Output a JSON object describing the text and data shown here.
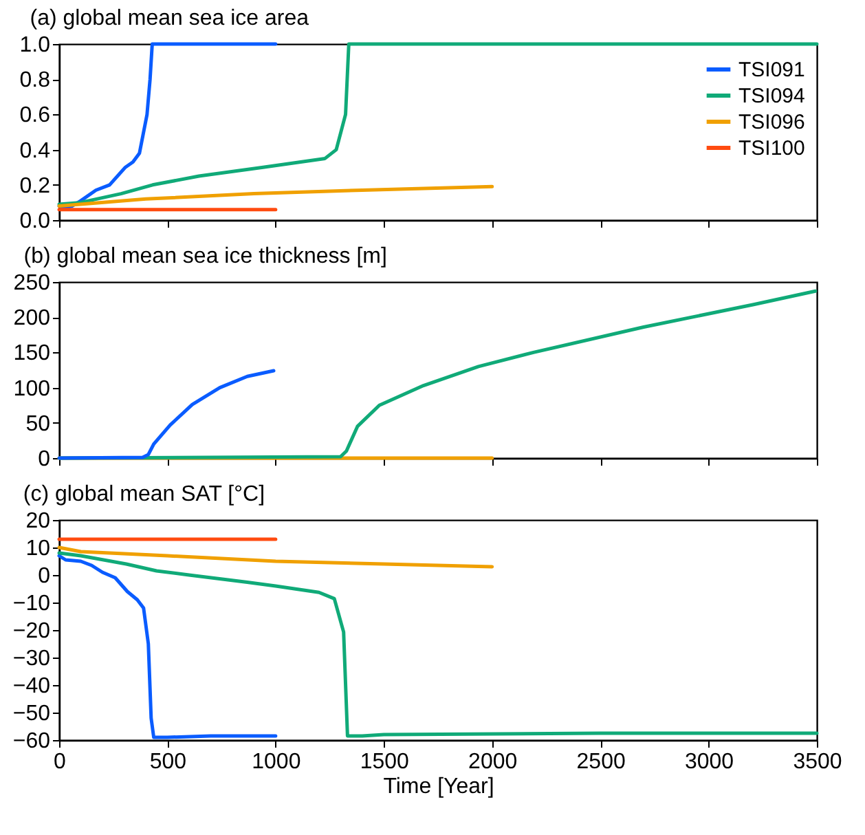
{
  "chart_data": [
    {
      "type": "line",
      "title": "(a) global mean sea ice area",
      "xlim": [
        0,
        3500
      ],
      "xticks": [
        0,
        500,
        1000,
        1500,
        2000,
        2500,
        3000,
        3500
      ],
      "ylim": [
        0,
        1
      ],
      "yticks": [
        {
          "value": 0,
          "label": "0.0"
        },
        {
          "value": 0.2,
          "label": "0.2"
        },
        {
          "value": 0.4,
          "label": "0.4"
        },
        {
          "value": 0.6,
          "label": "0.6"
        },
        {
          "value": 0.8,
          "label": "0.8"
        },
        {
          "value": 1,
          "label": "1.0"
        }
      ],
      "tick_labels": "y",
      "grid": false,
      "legend": "top right",
      "line_style": "solid",
      "marker": "none",
      "series": [
        {
          "name": "TSI091",
          "color": "#0a5cff",
          "x": [
            0,
            30,
            60,
            100,
            170,
            233,
            306,
            341,
            371,
            406,
            420,
            430,
            500,
            1000
          ],
          "values": [
            0.08,
            0.07,
            0.08,
            0.11,
            0.17,
            0.2,
            0.3,
            0.33,
            0.38,
            0.6,
            0.8,
            1.0,
            1.0,
            1.0
          ]
        },
        {
          "name": "TSI094",
          "color": "#10aa78",
          "x": [
            0,
            100,
            286,
            432,
            646,
            942,
            1228,
            1280,
            1323,
            1338,
            2000,
            3500
          ],
          "values": [
            0.09,
            0.1,
            0.15,
            0.2,
            0.25,
            0.3,
            0.35,
            0.4,
            0.6,
            1.0,
            1.0,
            1.0
          ]
        },
        {
          "name": "TSI096",
          "color": "#f0a000",
          "x": [
            0,
            400,
            900,
            1400,
            2000
          ],
          "values": [
            0.08,
            0.12,
            0.15,
            0.17,
            0.19
          ]
        },
        {
          "name": "TSI100",
          "color": "#ff4b10",
          "x": [
            0,
            1000
          ],
          "values": [
            0.06,
            0.06
          ]
        }
      ]
    },
    {
      "type": "line",
      "title": "(b) global mean sea ice thickness [m]",
      "xlim": [
        0,
        3500
      ],
      "xticks": [
        0,
        500,
        1000,
        1500,
        2000,
        2500,
        3000,
        3500
      ],
      "ylim": [
        0,
        250
      ],
      "yticks": [
        0,
        50,
        100,
        150,
        200,
        250
      ],
      "tick_labels": "y",
      "grid": false,
      "line_style": "solid",
      "marker": "none",
      "series": [
        {
          "color": "#f0a000",
          "x": [
            0,
            2000
          ],
          "values": [
            0,
            0
          ]
        },
        {
          "color": "#10aa78",
          "x": [
            0,
            1300,
            1327,
            1378,
            1479,
            1683,
            1937,
            2191,
            2700,
            3208,
            3493
          ],
          "values": [
            0,
            2,
            10,
            45,
            75,
            103,
            130,
            150,
            186,
            218,
            237
          ]
        },
        {
          "color": "#0a5cff",
          "x": [
            0,
            386,
            412,
            437,
            513,
            615,
            742,
            869,
            991
          ],
          "values": [
            0,
            1,
            5,
            20,
            47,
            76,
            100,
            116,
            124
          ]
        }
      ]
    },
    {
      "type": "line",
      "title": "(c) global mean SAT [°C]",
      "xlabel": "Time [Year]",
      "xlim": [
        0,
        3500
      ],
      "xticks": [
        0,
        500,
        1000,
        1500,
        2000,
        2500,
        3000,
        3500
      ],
      "ylim": [
        -60,
        20
      ],
      "yticks": [
        -60,
        -50,
        -40,
        -30,
        -20,
        -10,
        0,
        10,
        20
      ],
      "grid": false,
      "line_style": "solid",
      "marker": "none",
      "series": [
        {
          "color": "#0a5cff",
          "x": [
            0,
            30,
            100,
            150,
            200,
            259,
            315,
            361,
            390,
            412,
            425,
            437,
            500,
            700,
            1000
          ],
          "values": [
            7,
            5.5,
            5,
            3.5,
            1,
            -1,
            -6,
            -9,
            -12,
            -25,
            -52,
            -59,
            -59,
            -58.5,
            -58.5
          ]
        },
        {
          "color": "#10aa78",
          "x": [
            0,
            100,
            310,
            450,
            600,
            869,
            1000,
            1200,
            1271,
            1314,
            1332,
            1400,
            1500,
            2500,
            3500
          ],
          "values": [
            8,
            7,
            4,
            1.5,
            0,
            -2.6,
            -4,
            -6.3,
            -8.6,
            -20.7,
            -58.5,
            -58.5,
            -58,
            -57.5,
            -57.5
          ]
        },
        {
          "color": "#f0a000",
          "x": [
            0,
            100,
            500,
            1000,
            1500,
            2000
          ],
          "values": [
            10,
            8.5,
            7,
            5,
            4,
            3
          ]
        },
        {
          "color": "#ff4b10",
          "x": [
            0,
            1000
          ],
          "values": [
            13,
            13
          ]
        }
      ]
    }
  ]
}
